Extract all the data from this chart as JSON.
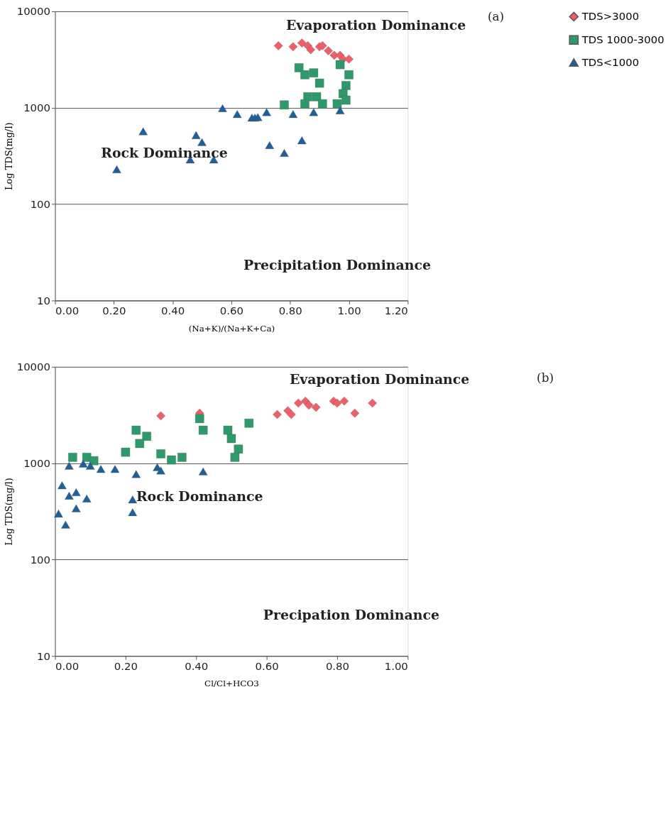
{
  "chart_data": [
    {
      "type": "scatter",
      "xlabel": "(Na+K)/(Na+K+Ca)",
      "ylabel": "Log TDS(mg/l)",
      "log": "y",
      "grid": "y",
      "legend": "right",
      "xlim": [
        0,
        1.2
      ],
      "ylim": [
        10,
        10000
      ],
      "xticks": [
        {
          "value": 0,
          "label": "0.00"
        },
        {
          "value": 0.2,
          "label": "0.20"
        },
        {
          "value": 0.4,
          "label": "0.40"
        },
        {
          "value": 0.6,
          "label": "0.60"
        },
        {
          "value": 0.8,
          "label": "0.80"
        },
        {
          "value": 1.0,
          "label": "1.00"
        },
        {
          "value": 1.2,
          "label": "1.20"
        }
      ],
      "yticks": [
        10,
        100,
        1000,
        10000
      ],
      "annotations": [
        "Evaporation Dominance",
        "(a)",
        "Rock Dominance",
        "Precipitation Dominance"
      ],
      "series": [
        {
          "name": "TDS>3000",
          "color": "#ee5f68",
          "marker": "diamond",
          "x": [
            0.76,
            0.81,
            0.84,
            0.86,
            0.87,
            0.9,
            0.91,
            0.93,
            0.95,
            0.97,
            0.98,
            1.0
          ],
          "values": [
            4400,
            4300,
            4700,
            4400,
            4000,
            4300,
            4400,
            3900,
            3500,
            3500,
            3200,
            3200
          ]
        },
        {
          "name": "TDS 1000-3000",
          "color": "#2e9a6c",
          "marker": "square",
          "x": [
            0.83,
            0.85,
            0.88,
            0.9,
            0.97,
            1.0,
            0.99,
            0.98,
            0.86,
            0.89,
            0.91,
            0.85,
            0.78,
            0.99,
            0.96
          ],
          "values": [
            2600,
            2200,
            2300,
            1800,
            2800,
            2200,
            1700,
            1400,
            1300,
            1300,
            1100,
            1100,
            1070,
            1200,
            1100
          ]
        },
        {
          "name": "TDS<1000",
          "color": "#1f5f9a",
          "marker": "triangle",
          "x": [
            0.57,
            0.62,
            0.67,
            0.3,
            0.48,
            0.5,
            0.46,
            0.54,
            0.21,
            0.68,
            0.69,
            0.72,
            0.81,
            0.88,
            0.97,
            0.73,
            0.78,
            0.84
          ],
          "values": [
            990,
            860,
            790,
            570,
            520,
            440,
            290,
            290,
            230,
            790,
            800,
            900,
            860,
            900,
            940,
            410,
            340,
            460
          ]
        }
      ]
    },
    {
      "type": "scatter",
      "xlabel": "Cl/Cl+HCO3",
      "ylabel": "Log TDS(mg/l)",
      "log": "y",
      "grid": "y",
      "legend": "right",
      "xlim": [
        0,
        1.0
      ],
      "ylim": [
        10,
        10000
      ],
      "xticks": [
        {
          "value": 0,
          "label": "0.00"
        },
        {
          "value": 0.2,
          "label": "0.20"
        },
        {
          "value": 0.4,
          "label": "0.40"
        },
        {
          "value": 0.6,
          "label": "0.60"
        },
        {
          "value": 0.8,
          "label": "0.80"
        },
        {
          "value": 1.0,
          "label": "1.00"
        }
      ],
      "yticks": [
        10,
        100,
        1000,
        10000
      ],
      "annotations": [
        "Evaporation Dominance",
        "(b)",
        "Rock Dominance",
        "Precipation  Dominance"
      ],
      "series": [
        {
          "name": "TDS>3000",
          "color": "#ee5f68",
          "marker": "diamond",
          "x": [
            0.3,
            0.41,
            0.63,
            0.66,
            0.67,
            0.69,
            0.71,
            0.72,
            0.74,
            0.79,
            0.8,
            0.82,
            0.85,
            0.9
          ],
          "values": [
            3100,
            3300,
            3200,
            3500,
            3200,
            4200,
            4400,
            4000,
            3800,
            4400,
            4200,
            4400,
            3300,
            4200
          ]
        },
        {
          "name": "TDS 1000-3000",
          "color": "#2e9a6c",
          "marker": "square",
          "x": [
            0.05,
            0.09,
            0.11,
            0.2,
            0.23,
            0.26,
            0.24,
            0.3,
            0.33,
            0.36,
            0.41,
            0.42,
            0.49,
            0.5,
            0.52,
            0.51,
            0.55
          ],
          "values": [
            1150,
            1150,
            1060,
            1300,
            2200,
            1900,
            1600,
            1250,
            1080,
            1150,
            2900,
            2200,
            2200,
            1800,
            1400,
            1150,
            2600
          ]
        },
        {
          "name": "TDS<1000",
          "color": "#1f5f9a",
          "marker": "triangle",
          "x": [
            0.04,
            0.08,
            0.1,
            0.13,
            0.17,
            0.23,
            0.29,
            0.3,
            0.42,
            0.02,
            0.06,
            0.04,
            0.09,
            0.06,
            0.01,
            0.03,
            0.22,
            0.22
          ],
          "values": [
            940,
            990,
            940,
            870,
            870,
            770,
            910,
            840,
            820,
            590,
            500,
            460,
            430,
            340,
            300,
            230,
            420,
            310
          ]
        }
      ]
    }
  ]
}
